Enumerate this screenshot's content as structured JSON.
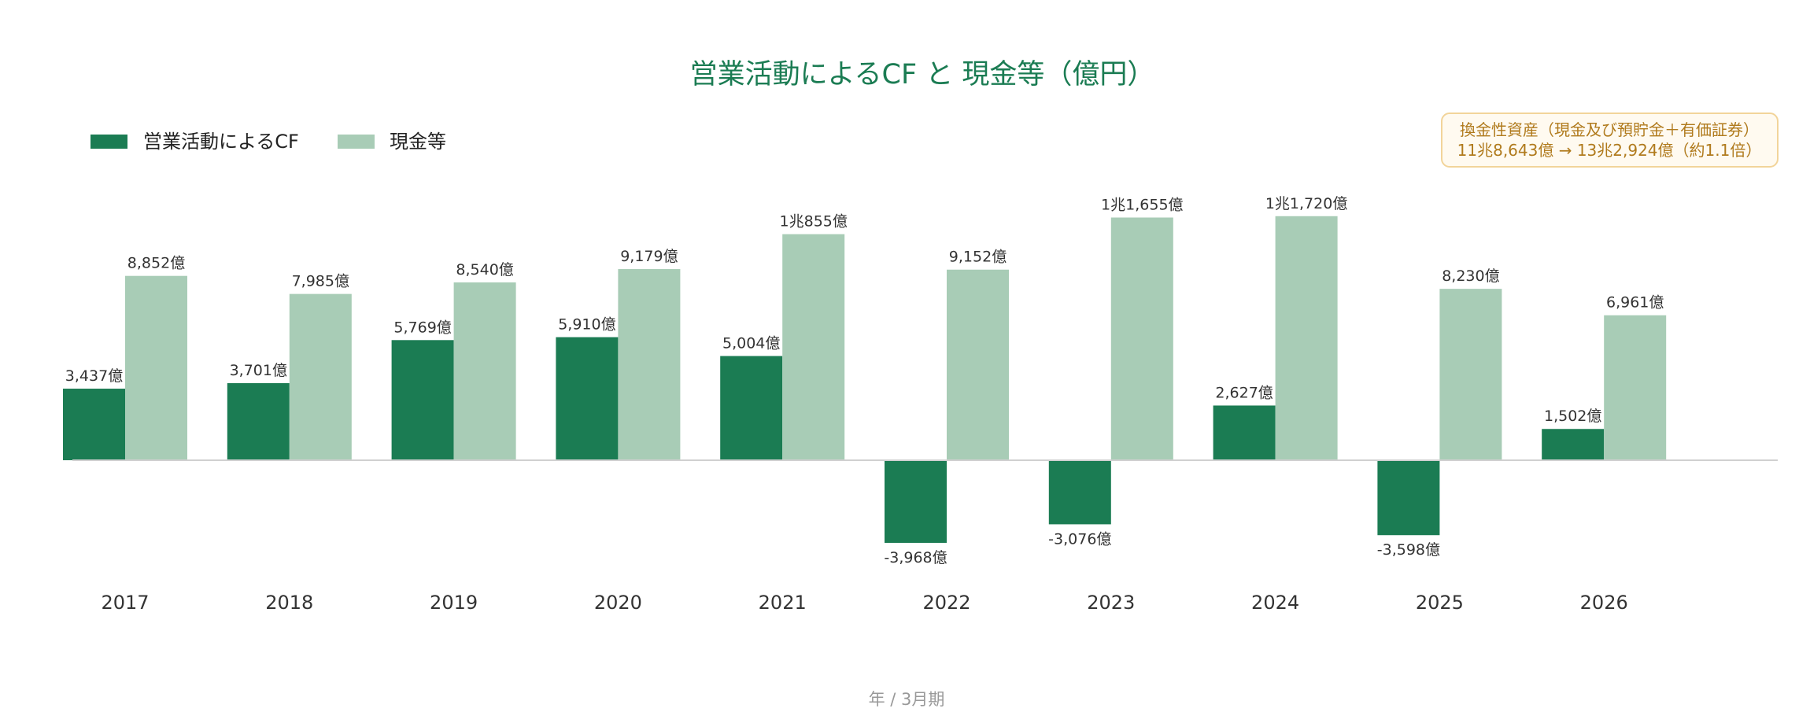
{
  "colors": {
    "cf": "#1b7c53",
    "cash": "#a8ccb6",
    "title": "#1b7c53",
    "axis": "#d0d0d0",
    "note_text": "#b07a1c",
    "note_border": "#f2d49a",
    "note_bg": "#fffaf0"
  },
  "note": {
    "line1": "換金性資産（現金及び預貯金＋有価証券）",
    "line2": "11兆8,643億 → 13兆2,924億（約1.1倍）"
  },
  "chart_data": {
    "type": "bar",
    "title": "営業活動によるCF と 現金等（億円）",
    "xlabel": "年 / 3月期",
    "ylabel": "",
    "ylim": [
      -4000,
      12000
    ],
    "legend_position": "top-left",
    "grid": false,
    "categories": [
      "2017",
      "2018",
      "2019",
      "2020",
      "2021",
      "2022",
      "2023",
      "2024",
      "2025",
      "2026"
    ],
    "series": [
      {
        "name": "営業活動によるCF",
        "values": [
          3437,
          3701,
          5769,
          5910,
          5004,
          -3968,
          -3076,
          2627,
          -3598,
          1502
        ],
        "labels": [
          "3,437億",
          "3,701億",
          "5,769億",
          "5,910億",
          "5,004億",
          "-3,968億",
          "-3,076億",
          "2,627億",
          "-3,598億",
          "1,502億"
        ]
      },
      {
        "name": "現金等",
        "values": [
          8852,
          7985,
          8540,
          9179,
          10855,
          9152,
          11655,
          11720,
          8230,
          6961
        ],
        "labels": [
          "8,852億",
          "7,985億",
          "8,540億",
          "9,179億",
          "1兆855億",
          "9,152億",
          "1兆1,655億",
          "1兆1,720億",
          "8,230億",
          "6,961億"
        ]
      }
    ]
  }
}
